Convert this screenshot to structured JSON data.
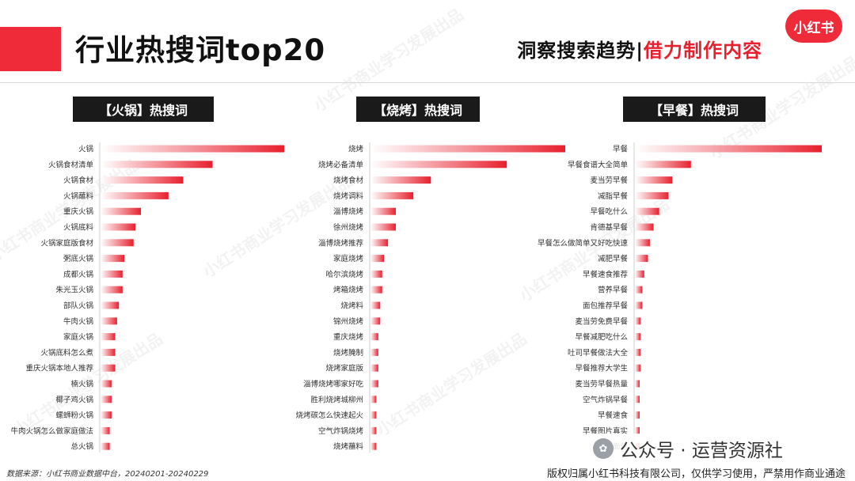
{
  "header": {
    "title": "行业热搜词top20",
    "tagline_left": "洞察搜索趋势|",
    "tagline_right": "借力制作内容",
    "logo_text": "小红书"
  },
  "colors": {
    "accent": "#ef2b3a",
    "bar": "#e8202e",
    "header_bg": "#1a1a1a"
  },
  "chart_data": [
    {
      "type": "bar",
      "orientation": "horizontal",
      "title": "【火锅】热搜词",
      "categories": [
        "火锅",
        "火锅食材清单",
        "火锅食材",
        "火锅蘸料",
        "重庆火锅",
        "火锅底料",
        "火锅家庭版食材",
        "粥底火锅",
        "成都火锅",
        "朱光玉火锅",
        "部队火锅",
        "牛肉火锅",
        "家庭火锅",
        "火锅底料怎么煮",
        "重庆火锅本地人推荐",
        "楠火锅",
        "椰子鸡火锅",
        "螺蛳粉火锅",
        "牛肉火锅怎么做家庭做法",
        "总火锅"
      ],
      "values": [
        100,
        61,
        45,
        37,
        22,
        19,
        18,
        13,
        12,
        12,
        10,
        9,
        8,
        8,
        8,
        6,
        6,
        6,
        5,
        5
      ],
      "xlim": [
        0,
        100
      ]
    },
    {
      "type": "bar",
      "orientation": "horizontal",
      "title": "【烧烤】热搜词",
      "categories": [
        "烧烤",
        "烧烤必备清单",
        "烧烤食材",
        "烧烤调料",
        "淄博烧烤",
        "徐州烧烤",
        "淄博烧烤推荐",
        "家庭烧烤",
        "哈尔滨烧烤",
        "烤箱烧烤",
        "烧烤料",
        "锦州烧烤",
        "重庆烧烤",
        "烧烤腌制",
        "烧烤家庭版",
        "淄博烧烤哪家好吃",
        "胜利烧烤城柳州",
        "烧烤碳怎么快速起火",
        "空气炸锅烧烤",
        "烧烤蘸料"
      ],
      "values": [
        100,
        70,
        31,
        22,
        13,
        13,
        9,
        7,
        6,
        6,
        5,
        5,
        4,
        4,
        4,
        4,
        3,
        3,
        3,
        3
      ],
      "xlim": [
        0,
        100
      ]
    },
    {
      "type": "bar",
      "orientation": "horizontal",
      "title": "【早餐】热搜词",
      "categories": [
        "早餐",
        "早餐食谱大全简单",
        "麦当劳早餐",
        "减脂早餐",
        "早餐吃什么",
        "肯德基早餐",
        "早餐怎么做简单又好吃快速",
        "减肥早餐",
        "早餐速食推荐",
        "营养早餐",
        "面包推荐早餐",
        "麦当劳免费早餐",
        "早餐减肥吃什么",
        "吐司早餐做法大全",
        "早餐推荐大学生",
        "麦当劳早餐热量",
        "空气炸锅早餐",
        "早餐速食",
        "早餐图片真实",
        "早餐面包"
      ],
      "values": [
        100,
        30,
        20,
        18,
        13,
        10,
        8,
        7,
        5,
        4,
        4,
        3,
        3,
        3,
        3,
        2,
        2,
        2,
        2,
        2
      ],
      "xlim": [
        0,
        100
      ]
    }
  ],
  "footer": {
    "source": "数据来源：小红书商业数据中台，20240201-20240229",
    "copyright": "版权归属小红书科技有限公司，仅供学习使用，严禁用作商业通途",
    "badge_text": "公众号 · 运营资源社"
  },
  "watermark_text": "小红书商业学习发展出品"
}
